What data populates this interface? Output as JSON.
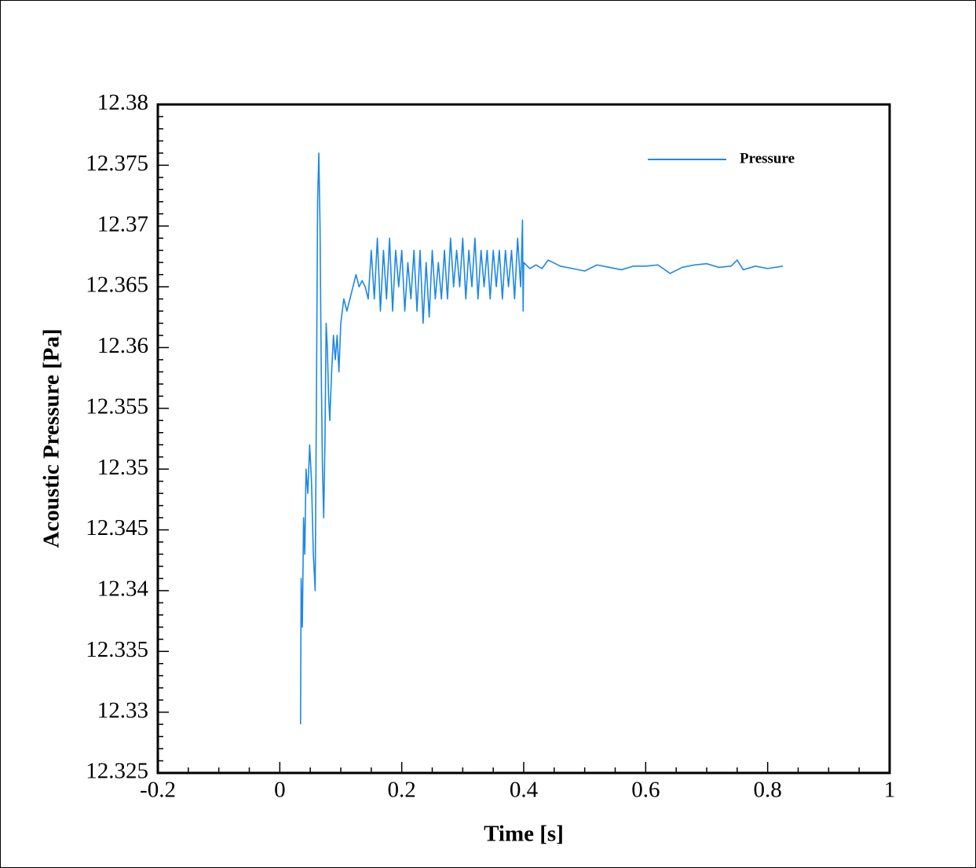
{
  "chart_data": {
    "type": "line",
    "xlabel": "Time [s]",
    "ylabel": "Acoustic Pressure [Pa]",
    "xlim": [
      -0.2,
      1
    ],
    "xticks": [
      -0.2,
      0,
      0.2,
      0.4,
      0.6,
      0.8,
      1
    ],
    "ylim": [
      12.325,
      12.38
    ],
    "yticks": [
      12.325,
      12.33,
      12.335,
      12.34,
      12.345,
      12.35,
      12.355,
      12.36,
      12.365,
      12.37,
      12.375,
      12.38
    ],
    "legend_position": "upper right",
    "x": [
      0.034,
      0.035,
      0.037,
      0.039,
      0.041,
      0.043,
      0.046,
      0.049,
      0.052,
      0.055,
      0.058,
      0.06,
      0.062,
      0.064,
      0.066,
      0.068,
      0.07,
      0.072,
      0.074,
      0.076,
      0.078,
      0.08,
      0.082,
      0.085,
      0.088,
      0.091,
      0.094,
      0.097,
      0.1,
      0.105,
      0.11,
      0.115,
      0.12,
      0.125,
      0.13,
      0.135,
      0.14,
      0.145,
      0.15,
      0.155,
      0.16,
      0.165,
      0.17,
      0.175,
      0.18,
      0.185,
      0.19,
      0.195,
      0.2,
      0.205,
      0.21,
      0.215,
      0.22,
      0.225,
      0.23,
      0.235,
      0.24,
      0.245,
      0.25,
      0.255,
      0.26,
      0.265,
      0.27,
      0.275,
      0.28,
      0.285,
      0.29,
      0.295,
      0.3,
      0.305,
      0.31,
      0.315,
      0.32,
      0.325,
      0.33,
      0.335,
      0.34,
      0.345,
      0.35,
      0.355,
      0.36,
      0.365,
      0.37,
      0.375,
      0.38,
      0.385,
      0.39,
      0.395,
      0.398,
      0.399,
      0.4,
      0.41,
      0.42,
      0.43,
      0.44,
      0.46,
      0.48,
      0.5,
      0.52,
      0.54,
      0.56,
      0.58,
      0.6,
      0.62,
      0.64,
      0.66,
      0.68,
      0.7,
      0.72,
      0.74,
      0.75,
      0.76,
      0.78,
      0.8,
      0.825
    ],
    "series": [
      {
        "name": "Pressure",
        "color": "#1e88e5",
        "values": [
          12.329,
          12.341,
          12.337,
          12.346,
          12.343,
          12.35,
          12.348,
          12.352,
          12.349,
          12.343,
          12.34,
          12.355,
          12.372,
          12.376,
          12.37,
          12.358,
          12.35,
          12.346,
          12.352,
          12.362,
          12.36,
          12.356,
          12.354,
          12.358,
          12.361,
          12.359,
          12.361,
          12.358,
          12.362,
          12.364,
          12.363,
          12.364,
          12.365,
          12.366,
          12.365,
          12.3655,
          12.365,
          12.364,
          12.368,
          12.364,
          12.369,
          12.363,
          12.368,
          12.364,
          12.369,
          12.363,
          12.368,
          12.365,
          12.368,
          12.363,
          12.367,
          12.364,
          12.368,
          12.363,
          12.368,
          12.362,
          12.367,
          12.3625,
          12.368,
          12.364,
          12.367,
          12.364,
          12.368,
          12.364,
          12.369,
          12.365,
          12.368,
          12.365,
          12.369,
          12.364,
          12.368,
          12.365,
          12.369,
          12.364,
          12.368,
          12.365,
          12.368,
          12.364,
          12.368,
          12.365,
          12.368,
          12.364,
          12.368,
          12.365,
          12.368,
          12.364,
          12.369,
          12.365,
          12.3705,
          12.363,
          12.367,
          12.3665,
          12.3668,
          12.3665,
          12.3672,
          12.3667,
          12.3665,
          12.3663,
          12.3668,
          12.3666,
          12.3664,
          12.3667,
          12.3667,
          12.3668,
          12.3661,
          12.3666,
          12.3668,
          12.3669,
          12.3666,
          12.3667,
          12.3672,
          12.3664,
          12.3667,
          12.3665,
          12.3667
        ]
      }
    ]
  }
}
